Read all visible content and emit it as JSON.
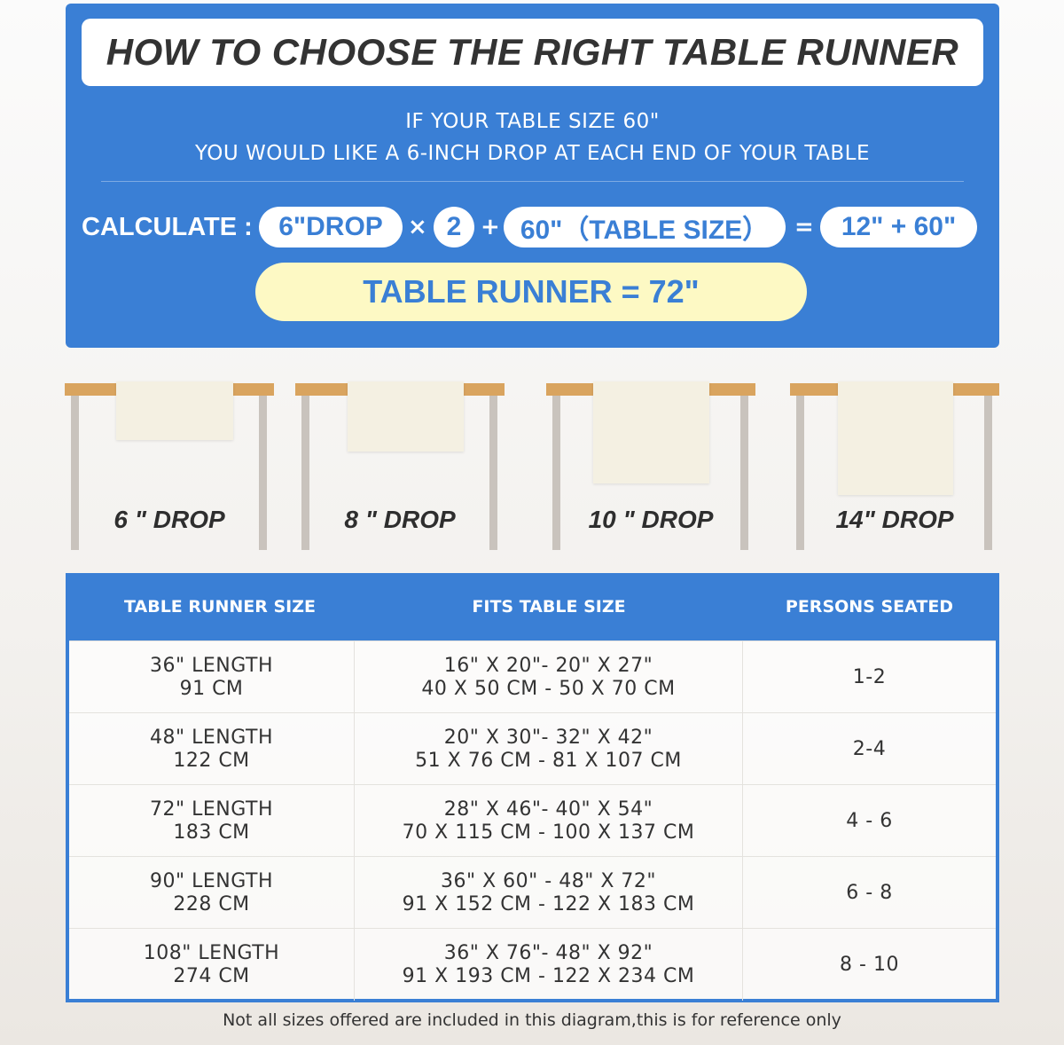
{
  "header": {
    "title": "HOW TO CHOOSE THE RIGHT TABLE RUNNER",
    "line1": "IF YOUR TABLE SIZE 60\"",
    "line2": "YOU WOULD LIKE A 6-INCH DROP AT EACH END OF YOUR TABLE"
  },
  "calc": {
    "label": "CALCULATE :",
    "drop": "6\"DROP",
    "times": "×",
    "two": "2",
    "plus": "+",
    "table": "60\"（TABLE SIZE）",
    "equals": "=",
    "sum": "12\" + 60\"",
    "result": "TABLE RUNNER = 72\""
  },
  "drops": [
    {
      "label": "6 \" DROP"
    },
    {
      "label": "8 \" DROP"
    },
    {
      "label": "10 \" DROP"
    },
    {
      "label": "14\" DROP"
    }
  ],
  "table": {
    "headers": [
      "TABLE RUNNER SIZE",
      "FITS TABLE SIZE",
      "PERSONS SEATED"
    ],
    "rows": [
      {
        "size": [
          "36\" LENGTH",
          "91 CM"
        ],
        "fits": [
          "16\" X 20\"- 20\" X 27\"",
          "40 X 50 CM - 50 X 70 CM"
        ],
        "persons": "1-2"
      },
      {
        "size": [
          "48\" LENGTH",
          "122 CM"
        ],
        "fits": [
          "20\" X 30\"- 32\" X 42\"",
          "51 X 76 CM - 81 X 107 CM"
        ],
        "persons": "2-4"
      },
      {
        "size": [
          "72\" LENGTH",
          "183 CM"
        ],
        "fits": [
          "28\" X 46\"- 40\" X 54\"",
          "70 X 115 CM - 100 X 137 CM"
        ],
        "persons": "4 - 6"
      },
      {
        "size": [
          "90\" LENGTH",
          "228 CM"
        ],
        "fits": [
          "36\" X 60\" - 48\" X 72\"",
          "91 X 152 CM - 122 X 183 CM"
        ],
        "persons": "6 - 8"
      },
      {
        "size": [
          "108\" LENGTH",
          "274 CM"
        ],
        "fits": [
          "36\" X 76\"- 48\" X 92\"",
          "91 X 193 CM - 122 X 234 CM"
        ],
        "persons": "8 - 10"
      }
    ]
  },
  "footnote": "Not all sizes offered are included in this diagram,this is for reference only",
  "colors": {
    "blue": "#3a7fd5",
    "yellow": "#fdf9c4",
    "wood": "#d9a45f",
    "runner": "#f4f0e2"
  }
}
